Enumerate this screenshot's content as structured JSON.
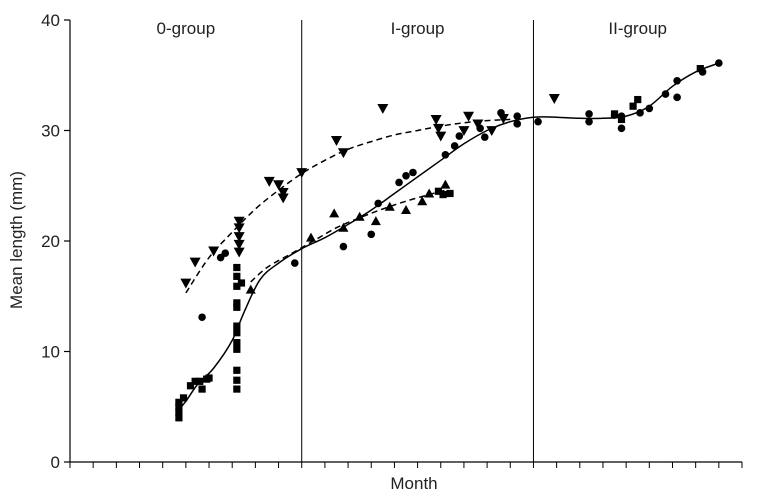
{
  "chart_data": {
    "type": "scatter",
    "xlabel": "Month",
    "ylabel": "Mean length (mm)",
    "ylim": [
      0,
      40
    ],
    "yticks": [
      0,
      10,
      20,
      30,
      40
    ],
    "grid": false,
    "legend": "none",
    "x_minor_ticks": 29,
    "x_domain": [
      0,
      29
    ],
    "group_dividers": [
      10,
      20
    ],
    "groups": [
      {
        "label": "0-group",
        "center": 5
      },
      {
        "label": "I-group",
        "center": 15
      },
      {
        "label": "II-group",
        "center": 24.5
      }
    ],
    "series": [
      {
        "marker": "circle",
        "points": [
          [
            5.7,
            13.1
          ],
          [
            6.5,
            18.5
          ],
          [
            6.7,
            18.9
          ],
          [
            9.7,
            18.0
          ],
          [
            11.8,
            19.5
          ],
          [
            13.0,
            20.6
          ],
          [
            13.3,
            23.4
          ],
          [
            14.2,
            25.3
          ],
          [
            14.5,
            25.9
          ],
          [
            14.8,
            26.2
          ],
          [
            16.2,
            27.8
          ],
          [
            16.6,
            28.6
          ],
          [
            16.8,
            29.5
          ],
          [
            17.7,
            30.2
          ],
          [
            17.9,
            29.4
          ],
          [
            18.6,
            31.6
          ],
          [
            19.3,
            30.6
          ],
          [
            19.3,
            31.3
          ],
          [
            20.2,
            30.8
          ],
          [
            22.4,
            30.8
          ],
          [
            22.4,
            31.5
          ],
          [
            23.5,
            31.4
          ],
          [
            23.8,
            31.3
          ],
          [
            23.8,
            30.2
          ],
          [
            24.6,
            31.6
          ],
          [
            25.0,
            32.0
          ],
          [
            25.7,
            33.3
          ],
          [
            26.2,
            34.5
          ],
          [
            26.2,
            33.0
          ],
          [
            27.3,
            35.3
          ],
          [
            28.0,
            36.1
          ]
        ]
      },
      {
        "marker": "square",
        "points": [
          [
            4.7,
            4.0
          ],
          [
            4.7,
            4.5
          ],
          [
            4.7,
            5.0
          ],
          [
            4.7,
            5.4
          ],
          [
            4.9,
            5.8
          ],
          [
            5.2,
            6.9
          ],
          [
            5.4,
            7.3
          ],
          [
            5.6,
            7.3
          ],
          [
            5.7,
            6.6
          ],
          [
            5.9,
            7.5
          ],
          [
            6.0,
            7.6
          ],
          [
            7.2,
            6.6
          ],
          [
            7.2,
            7.4
          ],
          [
            7.2,
            8.3
          ],
          [
            7.2,
            10.2
          ],
          [
            7.2,
            10.8
          ],
          [
            7.2,
            11.7
          ],
          [
            7.2,
            12.3
          ],
          [
            7.2,
            14.0
          ],
          [
            7.2,
            14.4
          ],
          [
            7.2,
            15.9
          ],
          [
            7.2,
            16.8
          ],
          [
            7.2,
            17.6
          ],
          [
            7.4,
            16.2
          ],
          [
            15.9,
            24.5
          ],
          [
            16.1,
            24.2
          ],
          [
            16.4,
            24.3
          ],
          [
            23.5,
            31.5
          ],
          [
            23.8,
            31.0
          ],
          [
            24.3,
            32.2
          ],
          [
            24.5,
            32.8
          ],
          [
            27.2,
            35.6
          ]
        ]
      },
      {
        "marker": "triangle-up",
        "points": [
          [
            7.8,
            15.6
          ],
          [
            10.4,
            20.3
          ],
          [
            11.4,
            22.5
          ],
          [
            11.8,
            21.2
          ],
          [
            12.5,
            22.2
          ],
          [
            13.2,
            21.8
          ],
          [
            13.8,
            23.1
          ],
          [
            14.5,
            22.8
          ],
          [
            15.2,
            23.6
          ],
          [
            15.5,
            24.3
          ],
          [
            16.2,
            25.1
          ]
        ]
      },
      {
        "marker": "triangle-down",
        "points": [
          [
            5.0,
            16.2
          ],
          [
            5.4,
            18.1
          ],
          [
            6.2,
            19.1
          ],
          [
            7.3,
            21.8
          ],
          [
            7.3,
            21.2
          ],
          [
            7.3,
            20.4
          ],
          [
            7.3,
            19.7
          ],
          [
            7.3,
            19.0
          ],
          [
            8.6,
            25.4
          ],
          [
            9.0,
            25.1
          ],
          [
            9.2,
            24.4
          ],
          [
            9.2,
            23.9
          ],
          [
            10.0,
            26.2
          ],
          [
            11.5,
            29.1
          ],
          [
            11.8,
            28.0
          ],
          [
            13.5,
            32.0
          ],
          [
            15.8,
            31.0
          ],
          [
            15.9,
            30.2
          ],
          [
            16.0,
            29.5
          ],
          [
            17.0,
            30.0
          ],
          [
            17.2,
            31.3
          ],
          [
            17.6,
            30.6
          ],
          [
            18.2,
            30.0
          ],
          [
            18.7,
            31.1
          ],
          [
            20.9,
            32.9
          ]
        ]
      }
    ],
    "curves": [
      {
        "style": "solid",
        "points": [
          [
            4.6,
            4.5
          ],
          [
            5.0,
            5.5
          ],
          [
            5.5,
            7.0
          ],
          [
            6.2,
            8.5
          ],
          [
            7.0,
            11.0
          ],
          [
            7.5,
            13.5
          ],
          [
            8.2,
            16.5
          ],
          [
            9.0,
            18.0
          ],
          [
            10.0,
            19.3
          ],
          [
            11.0,
            20.3
          ],
          [
            12.0,
            21.5
          ],
          [
            13.0,
            22.8
          ],
          [
            14.0,
            24.3
          ],
          [
            15.0,
            25.8
          ],
          [
            16.0,
            27.3
          ],
          [
            17.0,
            28.8
          ],
          [
            18.0,
            30.0
          ],
          [
            19.0,
            30.8
          ],
          [
            20.0,
            31.2
          ],
          [
            21.0,
            31.2
          ],
          [
            22.0,
            31.1
          ],
          [
            23.0,
            31.1
          ],
          [
            24.0,
            31.3
          ],
          [
            25.0,
            32.2
          ],
          [
            26.0,
            34.0
          ],
          [
            27.0,
            35.3
          ],
          [
            28.0,
            36.1
          ]
        ]
      },
      {
        "style": "dashed",
        "points": [
          [
            5.0,
            15.3
          ],
          [
            6.0,
            18.5
          ],
          [
            7.0,
            20.8
          ],
          [
            8.0,
            22.9
          ],
          [
            9.0,
            24.6
          ],
          [
            10.0,
            26.1
          ],
          [
            11.0,
            27.3
          ],
          [
            12.0,
            28.3
          ],
          [
            13.0,
            29.0
          ],
          [
            14.0,
            29.6
          ],
          [
            15.0,
            30.0
          ],
          [
            16.0,
            30.4
          ],
          [
            17.0,
            30.7
          ],
          [
            18.0,
            30.9
          ],
          [
            19.0,
            31.0
          ]
        ]
      },
      {
        "style": "dashed",
        "points": [
          [
            7.8,
            16.3
          ],
          [
            8.5,
            17.6
          ],
          [
            9.5,
            18.8
          ],
          [
            10.5,
            20.0
          ],
          [
            11.5,
            21.2
          ],
          [
            12.5,
            22.1
          ],
          [
            13.5,
            22.9
          ],
          [
            14.5,
            23.6
          ],
          [
            15.5,
            24.2
          ],
          [
            16.2,
            24.6
          ]
        ]
      }
    ]
  }
}
